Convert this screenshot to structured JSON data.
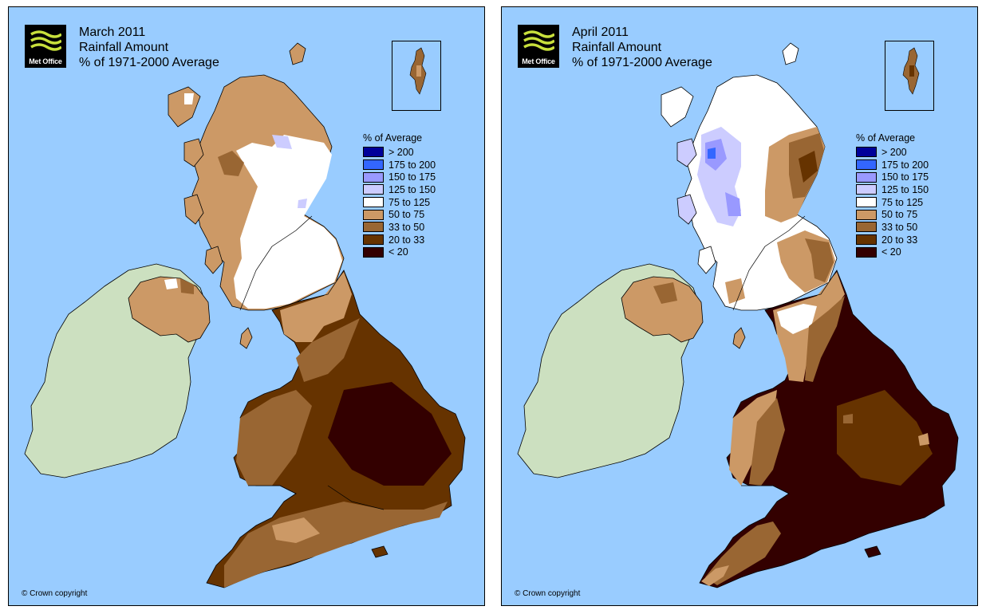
{
  "panels": [
    {
      "id": "march",
      "logo_text": "Met Office",
      "title": [
        "March 2011",
        "Rainfall Amount",
        "% of 1971-2000 Average"
      ],
      "copyright": "© Crown copyright"
    },
    {
      "id": "april",
      "logo_text": "Met Office",
      "title": [
        "April 2011",
        "Rainfall Amount",
        "% of 1971-2000 Average"
      ],
      "copyright": "© Crown copyright"
    }
  ],
  "legend": {
    "title": "% of Average",
    "items": [
      {
        "label": "> 200",
        "color": "#000099"
      },
      {
        "label": "175 to 200",
        "color": "#3366ff"
      },
      {
        "label": "150 to 175",
        "color": "#9999ff"
      },
      {
        "label": "125 to 150",
        "color": "#ccccff"
      },
      {
        "label": "75 to 125",
        "color": "#ffffff"
      },
      {
        "label": "50 to 75",
        "color": "#cc9966"
      },
      {
        "label": "33 to 50",
        "color": "#996633"
      },
      {
        "label": "20 to 33",
        "color": "#663300"
      },
      {
        "label": "< 20",
        "color": "#330000"
      }
    ]
  },
  "colors": {
    "sea": "#99ccff",
    "ireland": "#cce0c0",
    "logo_waves": "#c8e03c"
  }
}
